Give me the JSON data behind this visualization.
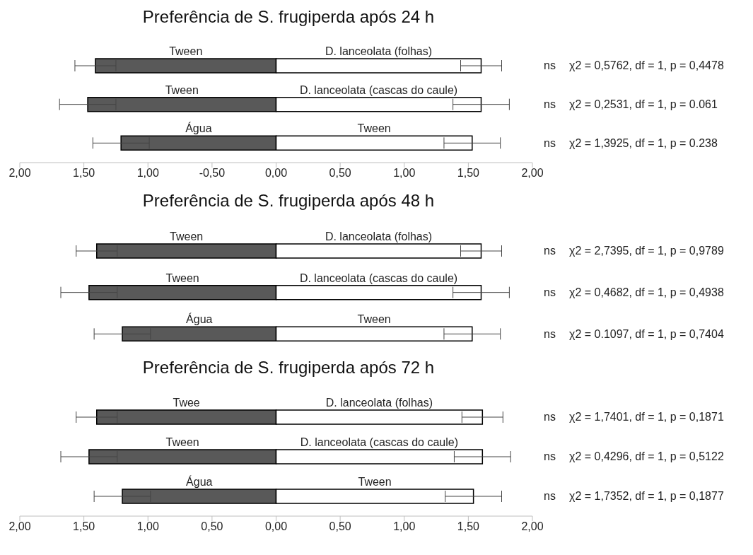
{
  "chart_data": [
    {
      "type": "bar",
      "orientation": "horizontal",
      "stacked": true,
      "title": "Preferência de S. frugiperda após 24 h",
      "categories": [
        "ns χ2 = 0,5762, df = 1, p = 0,4478",
        "ns χ2 = 0,2531, df = 1, p = 0.061",
        "ns χ2 = 1,3925, df = 1, p = 0.238"
      ],
      "series": [
        {
          "color": "#595959",
          "values": [
            -1.41,
            -1.47,
            -1.21
          ],
          "errors": [
            0.16,
            0.22,
            0.22
          ],
          "value_labels": [
            "Tween",
            "Tween",
            "Água"
          ]
        },
        {
          "color": "#ffffff",
          "values": [
            1.6,
            1.6,
            1.53
          ],
          "errors": [
            0.16,
            0.22,
            0.22
          ],
          "value_labels": [
            "D. lanceolata (folhas)",
            "D. lanceolata (cascas do caule)",
            "Tween"
          ]
        }
      ],
      "xlim": [
        -2,
        2
      ],
      "xticks": [
        {
          "value": -2,
          "label": "2,00"
        },
        {
          "value": -1.5,
          "label": "1,50"
        },
        {
          "value": -1,
          "label": "1,00"
        },
        {
          "value": -0.5,
          "label": "-0,50"
        },
        {
          "value": 0,
          "label": "0,00"
        },
        {
          "value": 0.5,
          "label": "0,50"
        },
        {
          "value": 1,
          "label": "1,00"
        },
        {
          "value": 1.5,
          "label": "1,50"
        },
        {
          "value": 2,
          "label": "2,00"
        }
      ],
      "grid": false,
      "legend": false
    },
    {
      "type": "bar",
      "orientation": "horizontal",
      "stacked": true,
      "tick_labels": "y",
      "xlim": [
        -2,
        2
      ],
      "title": "Preferência de S. frugiperda após 48 h",
      "categories": [
        "ns χ2 = 2,7395, df = 1, p = 0,9789",
        "ns χ2 = 0,4682, df = 1, p = 0,4938",
        "ns χ2 = 0.1097, df = 1, p = 0,7404"
      ],
      "series": [
        {
          "color": "#595959",
          "values": [
            -1.4,
            -1.46,
            -1.2
          ],
          "errors": [
            0.16,
            0.22,
            0.22
          ],
          "value_labels": [
            "Tween",
            "Tween",
            "Água"
          ]
        },
        {
          "color": "#ffffff",
          "values": [
            1.6,
            1.6,
            1.53
          ],
          "errors": [
            0.16,
            0.22,
            0.22
          ],
          "value_labels": [
            "D. lanceolata (folhas)",
            "D. lanceolata (cascas do caule)",
            "Tween"
          ]
        }
      ],
      "grid": false,
      "legend": false
    },
    {
      "type": "bar",
      "orientation": "horizontal",
      "stacked": true,
      "title": "Preferência de S. frugiperda após 72 h",
      "categories": [
        "ns χ2 = 1,7401, df = 1, p = 0,1871",
        "ns χ2 = 0,4296, df = 1, p = 0,5122",
        "ns χ2 = 1,7352, df = 1, p = 0,1877"
      ],
      "series": [
        {
          "color": "#595959",
          "values": [
            -1.4,
            -1.46,
            -1.2
          ],
          "errors": [
            0.16,
            0.22,
            0.22
          ],
          "value_labels": [
            "Twee",
            "Tween",
            "Água"
          ]
        },
        {
          "color": "#ffffff",
          "values": [
            1.61,
            1.61,
            1.54
          ],
          "errors": [
            0.16,
            0.22,
            0.22
          ],
          "value_labels": [
            "D. lanceolata (folhas)",
            "D. lanceolata (cascas do caule)",
            "Tween"
          ]
        }
      ],
      "xlim": [
        -2,
        2
      ],
      "xticks": [
        {
          "value": -2,
          "label": "2,00"
        },
        {
          "value": -1.5,
          "label": "1,50"
        },
        {
          "value": -1,
          "label": "1,00"
        },
        {
          "value": -0.5,
          "label": "0,50"
        },
        {
          "value": 0,
          "label": "0,00"
        },
        {
          "value": 0.5,
          "label": "0,50"
        },
        {
          "value": 1,
          "label": "1,00"
        },
        {
          "value": 1.5,
          "label": "1,50"
        },
        {
          "value": 2,
          "label": "2,00"
        }
      ],
      "grid": false,
      "legend": false
    }
  ]
}
